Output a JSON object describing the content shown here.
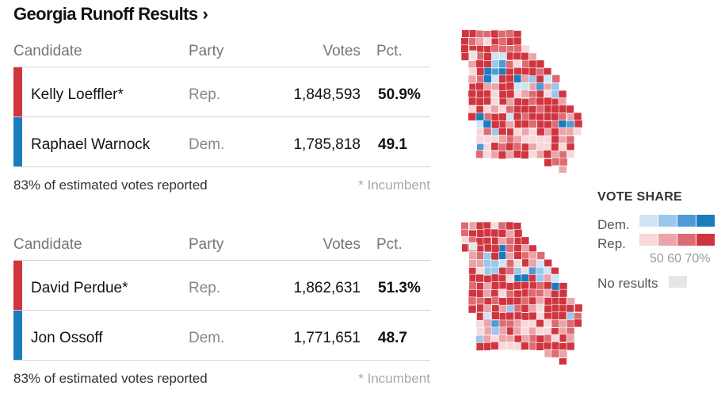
{
  "header": {
    "title": "Georgia Runoff Results",
    "chevron": "›"
  },
  "table_headers": {
    "candidate": "Candidate",
    "party": "Party",
    "votes": "Votes",
    "pct": "Pct."
  },
  "races": [
    {
      "rows": [
        {
          "name": "Kelly Loeffler*",
          "party": "Rep.",
          "votes": "1,848,593",
          "pct": "50.9%",
          "color": "#d0353f"
        },
        {
          "name": "Raphael Warnock",
          "party": "Dem.",
          "votes": "1,785,818",
          "pct": "49.1",
          "color": "#1a7cbd"
        }
      ],
      "reported": "83% of estimated votes reported",
      "incumbent": "* Incumbent"
    },
    {
      "rows": [
        {
          "name": "David Perdue*",
          "party": "Rep.",
          "votes": "1,862,631",
          "pct": "51.3%",
          "color": "#d0353f"
        },
        {
          "name": "Jon Ossoff",
          "party": "Dem.",
          "votes": "1,771,651",
          "pct": "48.7",
          "color": "#1a7cbd"
        }
      ],
      "reported": "83% of estimated votes reported",
      "incumbent": "* Incumbent"
    }
  ],
  "legend": {
    "title": "VOTE SHARE",
    "dem_label": "Dem.",
    "rep_label": "Rep.",
    "scale": "50 60 70%",
    "no_results": "No results",
    "dem_colors": [
      "#cde5f7",
      "#9ac8ec",
      "#4f9ad6",
      "#1a7cbd"
    ],
    "rep_colors": [
      "#f7d9dc",
      "#eba4a9",
      "#dd6b73",
      "#d0353f"
    ],
    "no_results_color": "#e6e6e6"
  },
  "maps": [
    {
      "name": "loeffler-warnock-county-map"
    },
    {
      "name": "perdue-ossoff-county-map"
    }
  ]
}
